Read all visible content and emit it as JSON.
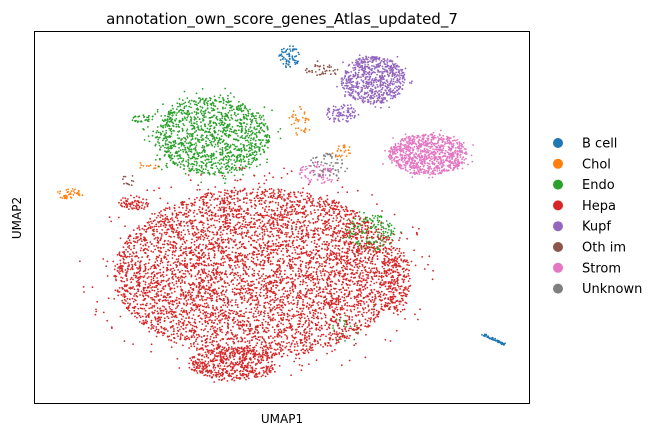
{
  "chart_data": {
    "type": "scatter",
    "title": "annotation_own_score_genes_Atlas_updated_7",
    "xlabel": "UMAP1",
    "ylabel": "UMAP2",
    "grid": false,
    "ticks": false,
    "legend_position": "right",
    "xlim": [
      0,
      100
    ],
    "ylim": [
      0,
      100
    ],
    "series": [
      {
        "name": "B cell",
        "color": "#1f77b4",
        "clusters": [
          {
            "cx": 51.5,
            "cy": 93.5,
            "rx": 2.0,
            "ry": 3.0,
            "n": 70
          },
          {
            "cx": 93.0,
            "cy": 17.0,
            "rx": 2.5,
            "ry": 1.6,
            "n": 70,
            "shape": "line",
            "angle": -32
          }
        ]
      },
      {
        "name": "Chol",
        "color": "#ff7f0e",
        "clusters": [
          {
            "cx": 7.0,
            "cy": 56.5,
            "rx": 2.5,
            "ry": 1.6,
            "n": 40
          },
          {
            "cx": 53.5,
            "cy": 76.0,
            "rx": 2.0,
            "ry": 4.0,
            "n": 35
          },
          {
            "cx": 62.0,
            "cy": 68.0,
            "rx": 2.0,
            "ry": 2.0,
            "n": 25
          },
          {
            "cx": 23.0,
            "cy": 64.0,
            "rx": 2.5,
            "ry": 1.0,
            "n": 12
          }
        ]
      },
      {
        "name": "Endo",
        "color": "#2ca02c",
        "clusters": [
          {
            "cx": 36.0,
            "cy": 72.0,
            "rx": 11.5,
            "ry": 10.5,
            "n": 1300
          },
          {
            "cx": 68.0,
            "cy": 46.0,
            "rx": 5.0,
            "ry": 5.0,
            "n": 180
          },
          {
            "cx": 22.0,
            "cy": 76.5,
            "rx": 2.5,
            "ry": 1.2,
            "n": 30
          },
          {
            "cx": 63.0,
            "cy": 20.0,
            "rx": 3.0,
            "ry": 4.0,
            "n": 25
          }
        ]
      },
      {
        "name": "Hepa",
        "color": "#d62728",
        "clusters": [
          {
            "cx": 45.0,
            "cy": 35.0,
            "rx": 29.0,
            "ry": 23.0,
            "n": 5600
          },
          {
            "cx": 40.0,
            "cy": 10.5,
            "rx": 9.0,
            "ry": 4.5,
            "n": 500
          },
          {
            "cx": 20.0,
            "cy": 54.0,
            "rx": 3.0,
            "ry": 2.0,
            "n": 70
          },
          {
            "cx": 73.0,
            "cy": 33.0,
            "rx": 3.0,
            "ry": 9.0,
            "n": 200
          }
        ]
      },
      {
        "name": "Kupf",
        "color": "#9467bd",
        "clusters": [
          {
            "cx": 68.5,
            "cy": 87.0,
            "rx": 6.5,
            "ry": 6.5,
            "n": 700
          },
          {
            "cx": 62.0,
            "cy": 78.0,
            "rx": 3.0,
            "ry": 2.5,
            "n": 90
          }
        ]
      },
      {
        "name": "Oth im",
        "color": "#8c564b",
        "clusters": [
          {
            "cx": 58.0,
            "cy": 90.0,
            "rx": 3.5,
            "ry": 1.8,
            "n": 40
          },
          {
            "cx": 19.0,
            "cy": 60.0,
            "rx": 1.5,
            "ry": 1.5,
            "n": 12
          }
        ]
      },
      {
        "name": "Strom",
        "color": "#e377c2",
        "clusters": [
          {
            "cx": 79.5,
            "cy": 67.0,
            "rx": 8.0,
            "ry": 5.5,
            "n": 900
          },
          {
            "cx": 57.0,
            "cy": 62.0,
            "rx": 3.5,
            "ry": 3.0,
            "n": 80
          }
        ]
      },
      {
        "name": "Unknown",
        "color": "#7f7f7f",
        "clusters": [
          {
            "cx": 59.0,
            "cy": 64.0,
            "rx": 3.5,
            "ry": 3.5,
            "n": 60
          }
        ]
      }
    ]
  }
}
